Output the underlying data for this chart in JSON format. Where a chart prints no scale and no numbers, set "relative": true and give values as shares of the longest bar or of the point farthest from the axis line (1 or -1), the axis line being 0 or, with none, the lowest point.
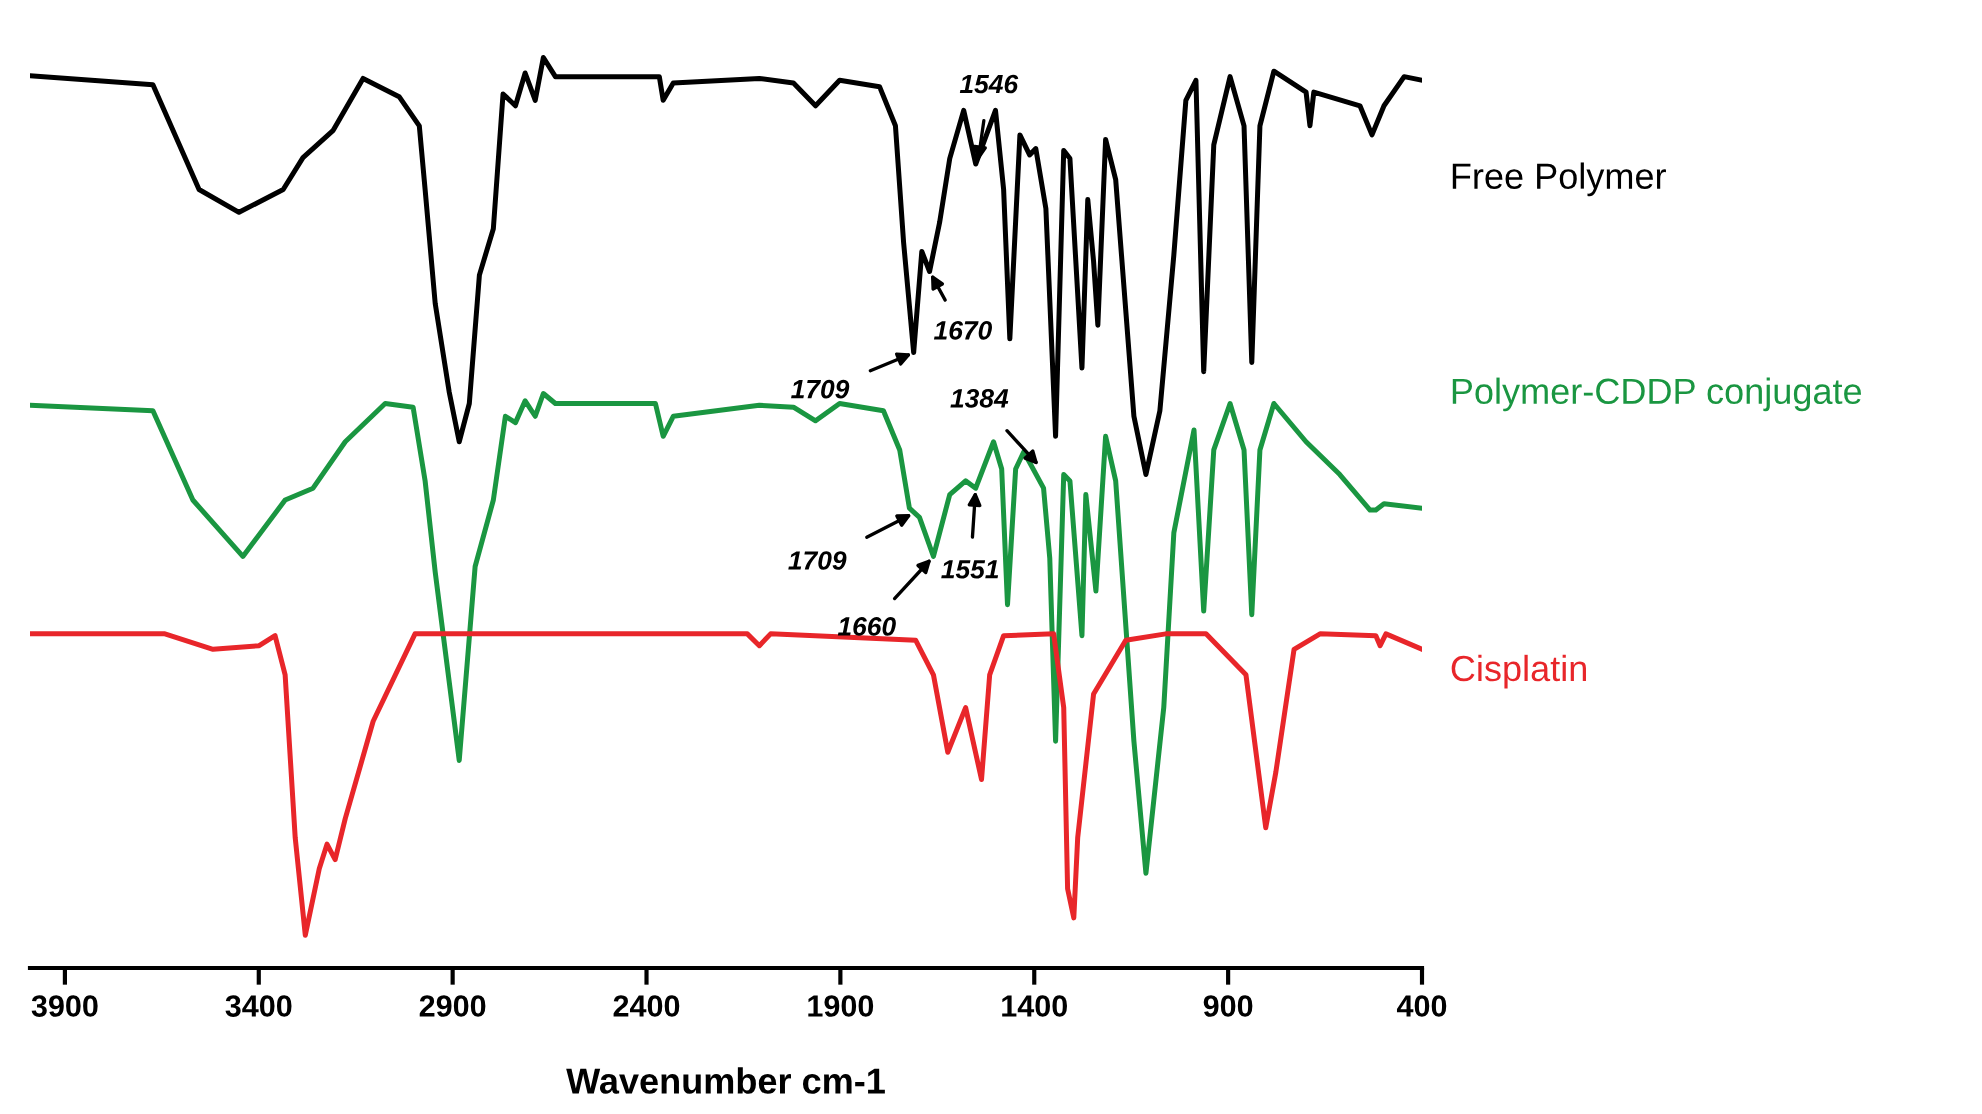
{
  "chart_data": {
    "type": "line",
    "relative": true,
    "xlabel": "Wavenumber cm-1",
    "xlim": [
      3990,
      400
    ],
    "xticks": [
      3900,
      3400,
      2900,
      2400,
      1900,
      1400,
      900,
      400
    ],
    "legend": false,
    "grid": false,
    "marker": "none",
    "line_style": "solid",
    "series": [
      {
        "name": "Free Polymer",
        "color": "#000000",
        "x": [
          3990,
          3673,
          3554,
          3451,
          3337,
          3286,
          3208,
          3131,
          3038,
          2986,
          2971,
          2945,
          2909,
          2883,
          2857,
          2831,
          2795,
          2770,
          2738,
          2713,
          2687,
          2666,
          2635,
          2367,
          2357,
          2331,
          2109,
          2021,
          1964,
          1902,
          1799,
          1758,
          1737,
          1711,
          1690,
          1670,
          1644,
          1618,
          1582,
          1551,
          1500,
          1479,
          1463,
          1437,
          1412,
          1396,
          1370,
          1345,
          1324,
          1308,
          1277,
          1262,
          1247,
          1236,
          1216,
          1190,
          1143,
          1112,
          1076,
          1040,
          1009,
          983,
          963,
          937,
          895,
          859,
          839,
          818,
          782,
          699,
          689,
          679,
          560,
          529,
          498,
          446,
          400
        ],
        "values": [
          0.98,
          0.97,
          0.855,
          0.83,
          0.855,
          0.89,
          0.92,
          0.977,
          0.957,
          0.925,
          0.855,
          0.73,
          0.633,
          0.578,
          0.62,
          0.761,
          0.812,
          0.96,
          0.947,
          0.983,
          0.953,
          1.0,
          0.979,
          0.979,
          0.953,
          0.972,
          0.977,
          0.972,
          0.947,
          0.975,
          0.968,
          0.925,
          0.797,
          0.676,
          0.787,
          0.765,
          0.819,
          0.889,
          0.942,
          0.883,
          0.942,
          0.855,
          0.691,
          0.915,
          0.893,
          0.9,
          0.834,
          0.584,
          0.898,
          0.889,
          0.659,
          0.844,
          0.776,
          0.706,
          0.91,
          0.866,
          0.606,
          0.542,
          0.612,
          0.783,
          0.953,
          0.975,
          0.655,
          0.904,
          0.979,
          0.925,
          0.665,
          0.925,
          0.985,
          0.962,
          0.925,
          0.962,
          0.947,
          0.915,
          0.947,
          0.979,
          0.975
        ]
      },
      {
        "name": "Polymer-CDDP conjugate",
        "color": "#1a9641",
        "x": [
          3990,
          3673,
          3570,
          3441,
          3332,
          3260,
          3177,
          3074,
          3002,
          2971,
          2945,
          2883,
          2842,
          2795,
          2764,
          2738,
          2713,
          2687,
          2666,
          2635,
          2377,
          2357,
          2331,
          2109,
          2021,
          1964,
          1902,
          1789,
          1747,
          1722,
          1696,
          1660,
          1618,
          1577,
          1551,
          1505,
          1484,
          1469,
          1448,
          1427,
          1376,
          1360,
          1345,
          1324,
          1308,
          1277,
          1267,
          1241,
          1216,
          1190,
          1143,
          1112,
          1066,
          1040,
          988,
          963,
          937,
          895,
          859,
          839,
          818,
          782,
          699,
          612,
          534,
          519,
          498,
          400
        ],
        "values": [
          0.618,
          0.612,
          0.514,
          0.452,
          0.514,
          0.527,
          0.578,
          0.62,
          0.616,
          0.535,
          0.435,
          0.228,
          0.441,
          0.514,
          0.606,
          0.599,
          0.623,
          0.606,
          0.631,
          0.62,
          0.62,
          0.584,
          0.606,
          0.618,
          0.616,
          0.601,
          0.62,
          0.612,
          0.569,
          0.505,
          0.495,
          0.452,
          0.52,
          0.535,
          0.527,
          0.578,
          0.548,
          0.399,
          0.548,
          0.567,
          0.527,
          0.45,
          0.249,
          0.542,
          0.535,
          0.365,
          0.52,
          0.414,
          0.584,
          0.535,
          0.249,
          0.104,
          0.286,
          0.478,
          0.591,
          0.392,
          0.569,
          0.62,
          0.569,
          0.388,
          0.569,
          0.62,
          0.578,
          0.542,
          0.503,
          0.503,
          0.51,
          0.505
        ]
      },
      {
        "name": "Cisplatin",
        "color": "#e8262a",
        "x": [
          3990,
          3642,
          3518,
          3399,
          3358,
          3332,
          3306,
          3280,
          3244,
          3224,
          3203,
          3177,
          3105,
          2997,
          2140,
          2109,
          2080,
          1706,
          1660,
          1623,
          1577,
          1536,
          1515,
          1479,
          1350,
          1324,
          1314,
          1298,
          1288,
          1247,
          1164,
          1061,
          957,
          854,
          803,
          777,
          730,
          663,
          519,
          508,
          493,
          400
        ],
        "values": [
          0.367,
          0.367,
          0.35,
          0.354,
          0.365,
          0.322,
          0.143,
          0.036,
          0.109,
          0.136,
          0.119,
          0.164,
          0.271,
          0.367,
          0.367,
          0.354,
          0.367,
          0.36,
          0.322,
          0.237,
          0.286,
          0.207,
          0.322,
          0.365,
          0.367,
          0.286,
          0.087,
          0.055,
          0.143,
          0.301,
          0.36,
          0.367,
          0.367,
          0.322,
          0.154,
          0.215,
          0.35,
          0.367,
          0.365,
          0.354,
          0.367,
          0.35
        ]
      }
    ],
    "annotations": [
      {
        "text": "1709",
        "x": 1709,
        "y": 0.676
      },
      {
        "text": "1670",
        "x": 1670,
        "y": 0.765
      },
      {
        "text": "1546",
        "x": 1546,
        "y": 0.883
      },
      {
        "text": "1709",
        "x": 1709,
        "y": 0.5
      },
      {
        "text": "1660",
        "x": 1660,
        "y": 0.452
      },
      {
        "text": "1551",
        "x": 1551,
        "y": 0.527
      },
      {
        "text": "1384",
        "x": 1384,
        "y": 0.55
      }
    ]
  }
}
